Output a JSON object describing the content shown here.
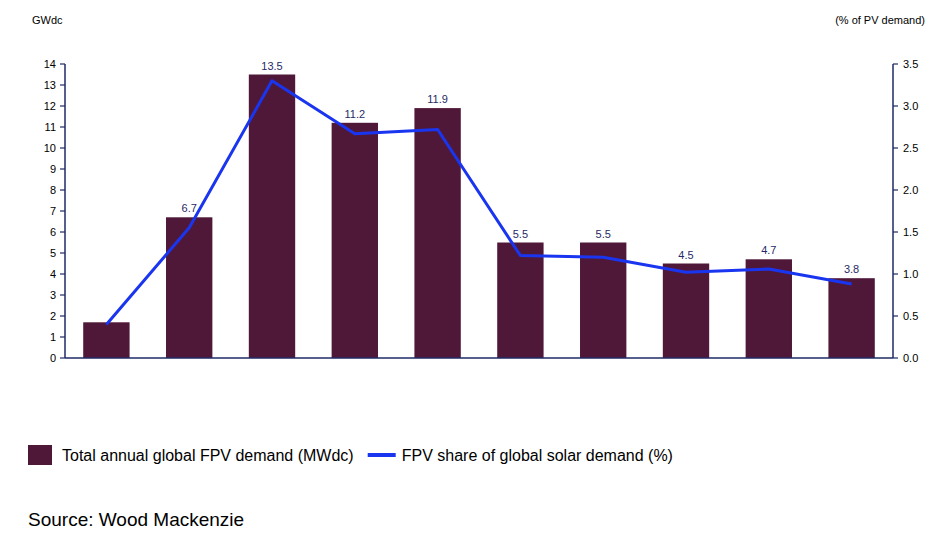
{
  "chart_data": {
    "type": "bar",
    "y_label": "GWdc",
    "y2_label": "(% of PV demand)",
    "source": "Source: Wood Mackenzie",
    "categories": [
      null,
      null,
      null,
      null,
      null,
      null,
      null,
      null,
      null,
      null
    ],
    "ylim": [
      0,
      14
    ],
    "yticks": [
      0,
      1,
      2,
      3,
      4,
      5,
      6,
      7,
      8,
      9,
      10,
      11,
      12,
      13,
      14
    ],
    "y2lim": [
      0,
      3.5
    ],
    "y2ticks": [
      {
        "value": 0,
        "label": "0.0"
      },
      0.5,
      {
        "value": 1,
        "label": "1.0"
      },
      1.5,
      {
        "value": 2,
        "label": "2.0"
      },
      2.5,
      {
        "value": 3,
        "label": "3.0"
      },
      3.5
    ],
    "grid": false,
    "legend": "bottom",
    "data_labels": true,
    "series": [
      {
        "name": "Total annual global FPV demand (MWdc)",
        "type": "bar",
        "color": "#4f1838",
        "values": [
          1.7,
          6.7,
          13.5,
          11.2,
          11.9,
          5.5,
          5.5,
          4.5,
          4.7,
          3.8
        ],
        "value_labels": [
          null,
          "6.7",
          "13.5",
          "11.2",
          "11.9",
          "5.5",
          "5.5",
          "4.5",
          "4.7",
          "3.8"
        ]
      },
      {
        "name": "FPV share of global solar demand (%)",
        "type": "line",
        "axis": "y2",
        "color": "#1a35f0",
        "marker": "none",
        "line_style": "solid",
        "values": [
          0.4,
          1.55,
          3.3,
          2.67,
          2.72,
          1.22,
          1.2,
          1.02,
          1.06,
          0.88
        ]
      }
    ]
  }
}
